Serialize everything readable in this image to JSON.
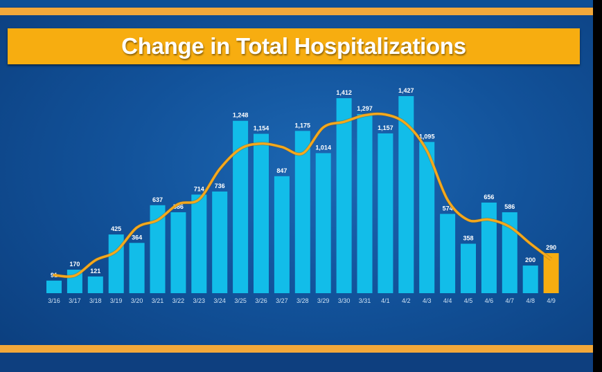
{
  "chart_data": {
    "type": "bar",
    "title": "Change in Total Hospitalizations",
    "categories": [
      "3/16",
      "3/17",
      "3/18",
      "3/19",
      "3/20",
      "3/21",
      "3/22",
      "3/23",
      "3/24",
      "3/25",
      "3/26",
      "3/27",
      "3/28",
      "3/29",
      "3/30",
      "3/31",
      "4/1",
      "4/2",
      "4/3",
      "4/4",
      "4/5",
      "4/6",
      "4/7",
      "4/8",
      "4/9"
    ],
    "values": [
      91,
      170,
      121,
      425,
      364,
      637,
      586,
      714,
      736,
      1248,
      1154,
      847,
      1175,
      1014,
      1412,
      1297,
      1157,
      1427,
      1095,
      574,
      358,
      656,
      586,
      200,
      290
    ],
    "value_labels": [
      "91",
      "170",
      "121",
      "425",
      "364",
      "637",
      "586",
      "714",
      "736",
      "1,248",
      "1,154",
      "847",
      "1,175",
      "1,014",
      "1,412",
      "1,297",
      "1,157",
      "1,427",
      "1,095",
      "574",
      "358",
      "656",
      "586",
      "200",
      "290"
    ],
    "trend_line": "smoothed moving average",
    "xlabel": "",
    "ylabel": "",
    "ylim": [
      0,
      1500
    ],
    "grid": false,
    "colors": {
      "bar": "#12bde9",
      "highlight_bar": "#f7ad10",
      "trend": "#f5a81c"
    },
    "highlight_index": 24
  }
}
